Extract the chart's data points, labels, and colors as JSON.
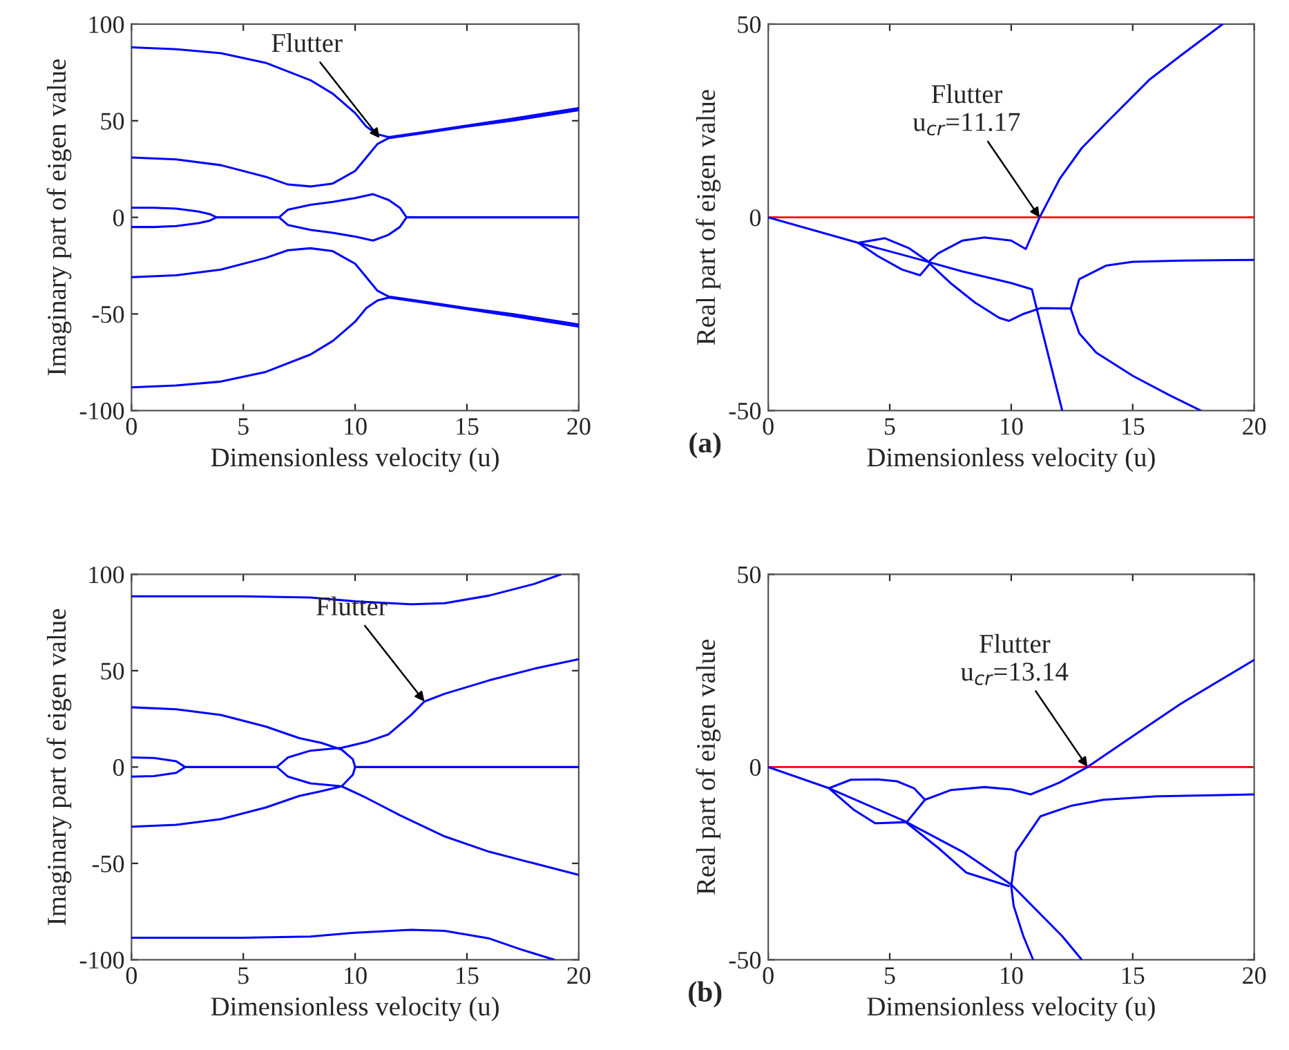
{
  "chart_data": [
    {
      "type": "line",
      "xlabel": "Dimensionless velocity (u)",
      "ylabel": "Imaginary part of eigen value",
      "xlim": [
        0,
        20
      ],
      "ylim": [
        -100,
        100
      ],
      "xticks": [
        0,
        5,
        10,
        15,
        20
      ],
      "yticks": [
        -100,
        -50,
        0,
        50,
        100
      ],
      "grid": false,
      "legend": false,
      "series": [
        {
          "color": "#0000ff",
          "x": [
            0,
            2,
            4,
            6,
            8,
            9,
            10,
            10.5,
            11,
            11.5,
            13,
            15,
            17,
            20
          ],
          "values": [
            88,
            87,
            85,
            80,
            71,
            64,
            54,
            47,
            43,
            41.5,
            44,
            47.5,
            51,
            56.5
          ]
        },
        {
          "color": "#0000ff",
          "x": [
            0,
            2,
            4,
            6,
            7,
            8,
            9,
            10,
            10.5,
            11,
            11.5,
            13,
            15,
            17,
            20
          ],
          "values": [
            31,
            30,
            27,
            21,
            17,
            16,
            17.5,
            24,
            31,
            38,
            41,
            43.5,
            47,
            50,
            55.5
          ]
        },
        {
          "color": "#0000ff",
          "x": [
            0,
            2,
            4,
            6,
            8,
            9,
            10,
            10.5,
            11,
            11.5,
            13,
            15,
            17,
            20
          ],
          "values": [
            -88,
            -87,
            -85,
            -80,
            -71,
            -64,
            -54,
            -47,
            -43,
            -41.5,
            -44,
            -47.5,
            -51,
            -56.5
          ]
        },
        {
          "color": "#0000ff",
          "x": [
            0,
            2,
            4,
            6,
            7,
            8,
            9,
            10,
            10.5,
            11,
            11.5,
            13,
            15,
            17,
            20
          ],
          "values": [
            -31,
            -30,
            -27,
            -21,
            -17,
            -16,
            -17.5,
            -24,
            -31,
            -38,
            -41,
            -43.5,
            -47,
            -50,
            -55.5
          ]
        },
        {
          "color": "#0000ff",
          "x": [
            0,
            1,
            2,
            3,
            3.5,
            3.8,
            3.5,
            3,
            2,
            1,
            0
          ],
          "values": [
            5,
            5,
            4.5,
            3,
            1.7,
            0,
            -1.7,
            -3,
            -4.5,
            -5,
            -5
          ]
        },
        {
          "color": "#0000ff",
          "x": [
            3.8,
            6.6,
            7,
            8,
            9,
            10,
            10.8,
            11.5,
            12,
            12.3,
            20
          ],
          "values": [
            0,
            0,
            4,
            6.5,
            8,
            10,
            12,
            9,
            5,
            0,
            0
          ]
        },
        {
          "color": "#0000ff",
          "x": [
            6.6,
            7,
            8,
            9,
            10,
            10.8,
            11.5,
            12,
            12.3
          ],
          "values": [
            0,
            -4,
            -6.5,
            -8,
            -10,
            -12,
            -9,
            -5,
            0
          ]
        }
      ],
      "annotations": [
        {
          "text": "Flutter",
          "x": 11.1,
          "y": 41
        }
      ]
    },
    {
      "type": "line",
      "xlabel": "Dimensionless velocity (u)",
      "ylabel": "Real part of eigen value",
      "xlim": [
        0,
        20
      ],
      "ylim": [
        -50,
        50
      ],
      "xticks": [
        0,
        5,
        10,
        15,
        20
      ],
      "yticks": [
        -50,
        0,
        50
      ],
      "grid": false,
      "legend": false,
      "series": [
        {
          "color": "#0000ff",
          "x": [
            0,
            3.7,
            6,
            8,
            10,
            10.85,
            11.3,
            12.1
          ],
          "values": [
            0,
            -6.6,
            -10.5,
            -14,
            -17,
            -18.6,
            -30,
            -50
          ]
        },
        {
          "color": "#0000ff",
          "x": [
            3.7,
            4.8,
            5.8,
            6.6,
            7.0,
            8,
            8.9,
            10,
            10.6,
            11.17,
            12,
            12.9,
            14,
            15.7,
            17,
            18.7
          ],
          "values": [
            -6.6,
            -5.4,
            -8,
            -11.5,
            -9.3,
            -6,
            -5.2,
            -6,
            -8.2,
            0,
            10,
            17.9,
            25,
            35.7,
            42,
            50
          ]
        },
        {
          "color": "#0000ff",
          "x": [
            3.7,
            4.5,
            5.5,
            6.25,
            6.65
          ],
          "values": [
            -6.6,
            -10,
            -13.5,
            -15,
            -12
          ]
        },
        {
          "color": "#0000ff",
          "x": [
            6.65,
            7.5,
            8.5,
            9.5,
            9.9,
            10.5,
            11.2,
            12.45
          ],
          "values": [
            -12,
            -17,
            -22,
            -26,
            -26.8,
            -25,
            -23.5,
            -23.6
          ]
        },
        {
          "color": "#0000ff",
          "x": [
            12.45,
            12.8,
            13.9,
            15,
            17,
            20
          ],
          "values": [
            -23.6,
            -16,
            -12.5,
            -11.5,
            -11.2,
            -11
          ]
        },
        {
          "color": "#0000ff",
          "x": [
            12.45,
            12.8,
            13.5,
            15,
            16.5,
            17.8
          ],
          "values": [
            -23.6,
            -30,
            -35,
            -41,
            -46,
            -50
          ]
        }
      ],
      "ref_lines": [
        {
          "axis": "y",
          "value": 0,
          "color": "#ff0000"
        }
      ],
      "annotations": [
        {
          "text": "Flutter\nu$_{cr}$=11.17",
          "x": 11.17,
          "y": 0
        },
        "(a)"
      ]
    },
    {
      "type": "line",
      "xlabel": "Dimensionless velocity (u)",
      "ylabel": "Imaginary part of eigen value",
      "xlim": [
        0,
        20
      ],
      "ylim": [
        -100,
        100
      ],
      "xticks": [
        0,
        5,
        10,
        15,
        20
      ],
      "yticks": [
        -100,
        -50,
        0,
        50,
        100
      ],
      "grid": false,
      "legend": false,
      "series": [
        {
          "color": "#0000ff",
          "x": [
            0,
            5,
            8,
            10,
            12.5,
            14,
            16,
            18,
            19.2
          ],
          "values": [
            88.6,
            88.6,
            88,
            86,
            84.5,
            85,
            89,
            95,
            100
          ]
        },
        {
          "color": "#0000ff",
          "x": [
            0,
            5,
            8,
            10,
            12.5,
            14,
            16,
            17.5,
            18.9
          ],
          "values": [
            -88.6,
            -88.6,
            -88,
            -86,
            -84.5,
            -85,
            -89,
            -95,
            -100
          ]
        },
        {
          "color": "#0000ff",
          "x": [
            0,
            2,
            4,
            6,
            7.5,
            8.5,
            9.4,
            9.9,
            10,
            9.9,
            9.4,
            10.5,
            12,
            14,
            16,
            18,
            20
          ],
          "values": [
            31,
            30,
            27,
            21,
            15,
            12.5,
            9,
            4,
            0,
            -4,
            -10,
            -16,
            -25,
            -36,
            -44,
            -50,
            -56
          ]
        },
        {
          "color": "#0000ff",
          "x": [
            0,
            2,
            4,
            6,
            7.5,
            8.5,
            9.4,
            8,
            7,
            6.5,
            7,
            8,
            9.4,
            10.5,
            11.5,
            12.5,
            13.1,
            14,
            16,
            18,
            20
          ],
          "values": [
            -31,
            -30,
            -27,
            -21,
            -15,
            -12.5,
            -10,
            -8.5,
            -5,
            0,
            5,
            8.5,
            10,
            13,
            17,
            27,
            34,
            38,
            45,
            51,
            56
          ]
        },
        {
          "color": "#0000ff",
          "x": [
            0,
            1,
            2,
            2.4,
            2,
            1,
            0
          ],
          "values": [
            5,
            4.7,
            3,
            0,
            -3,
            -4.7,
            -5
          ]
        },
        {
          "color": "#0000ff",
          "x": [
            2.4,
            6.5
          ],
          "values": [
            0,
            0
          ]
        },
        {
          "color": "#0000ff",
          "x": [
            10,
            20
          ],
          "values": [
            0,
            0
          ]
        }
      ],
      "annotations": [
        {
          "text": "Flutter",
          "x": 13.1,
          "y": 34
        }
      ]
    },
    {
      "type": "line",
      "xlabel": "Dimensionless velocity (u)",
      "ylabel": "Real part of eigen value",
      "xlim": [
        0,
        20
      ],
      "ylim": [
        -50,
        50
      ],
      "xticks": [
        0,
        5,
        10,
        15,
        20
      ],
      "yticks": [
        -50,
        0,
        50
      ],
      "grid": false,
      "legend": false,
      "series": [
        {
          "color": "#0000ff",
          "x": [
            0,
            2.5,
            5.6,
            8,
            10,
            12.1,
            12.9
          ],
          "values": [
            0,
            -5.5,
            -14,
            -22,
            -30.5,
            -43.9,
            -50
          ]
        },
        {
          "color": "#0000ff",
          "x": [
            2.5,
            3.4,
            4.5,
            5.3,
            6.0,
            6.45,
            7.5,
            8.9,
            10,
            10.8,
            12,
            13.14,
            15,
            17,
            20
          ],
          "values": [
            -5.5,
            -3.3,
            -3.2,
            -3.7,
            -5.5,
            -8.5,
            -6,
            -5.2,
            -5.8,
            -7.1,
            -4,
            0,
            8,
            16.5,
            27.8
          ]
        },
        {
          "color": "#0000ff",
          "x": [
            2.5,
            3.5,
            4.4,
            5.7,
            6.45
          ],
          "values": [
            -5.5,
            -11,
            -14.6,
            -14.3,
            -8.5
          ]
        },
        {
          "color": "#0000ff",
          "x": [
            5.6,
            7,
            8.15,
            9.9
          ],
          "values": [
            -14,
            -21,
            -27.4,
            -30.9
          ]
        },
        {
          "color": "#0000ff",
          "x": [
            10.9,
            10.5,
            10.1,
            10,
            10.2,
            11.2,
            12.5,
            13.8,
            16,
            20
          ],
          "values": [
            -50,
            -43.9,
            -36,
            -30.9,
            -22,
            -12.8,
            -10,
            -8.5,
            -7.6,
            -7.1
          ]
        }
      ],
      "ref_lines": [
        {
          "axis": "y",
          "value": 0,
          "color": "#ff0000"
        }
      ],
      "annotations": [
        {
          "text": "Flutter\nu$_{cr}$=13.14",
          "x": 13.14,
          "y": 0
        },
        "(b)"
      ]
    }
  ]
}
